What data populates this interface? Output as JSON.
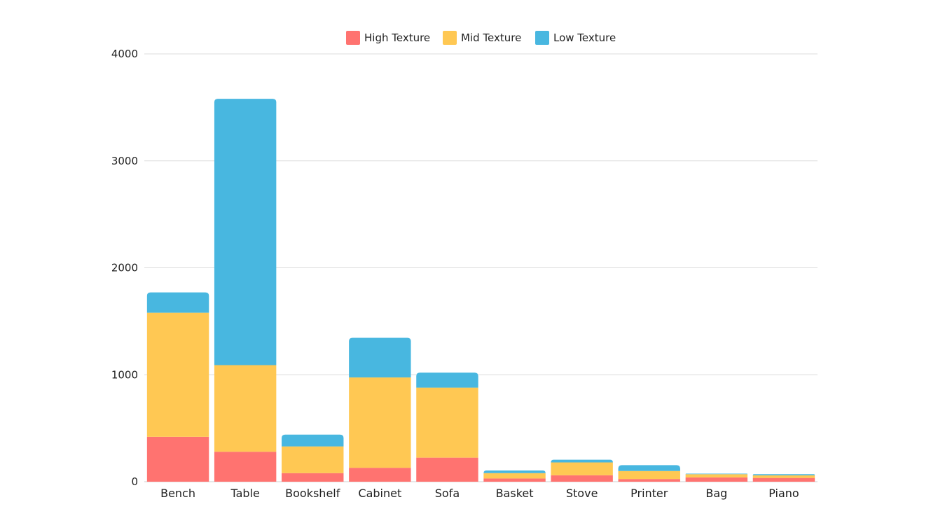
{
  "chart_data": {
    "type": "bar",
    "stacked": true,
    "categories": [
      "Bench",
      "Table",
      "Bookshelf",
      "Cabinet",
      "Sofa",
      "Basket",
      "Stove",
      "Printer",
      "Bag",
      "Piano"
    ],
    "series": [
      {
        "name": "High Texture",
        "color": "#ff7370",
        "values": [
          420,
          280,
          80,
          130,
          225,
          30,
          60,
          25,
          40,
          35
        ]
      },
      {
        "name": "Mid Texture",
        "color": "#ffc853",
        "values": [
          1160,
          810,
          250,
          845,
          655,
          50,
          120,
          75,
          30,
          25
        ]
      },
      {
        "name": "Low Texture",
        "color": "#48b7e0",
        "values": [
          190,
          2490,
          110,
          370,
          140,
          25,
          25,
          55,
          5,
          10
        ]
      }
    ],
    "ylim": [
      0,
      4000
    ],
    "yticks": [
      "0",
      "1000",
      "2000",
      "3000",
      "4000"
    ],
    "grid": true,
    "legend_position": "top-center"
  }
}
